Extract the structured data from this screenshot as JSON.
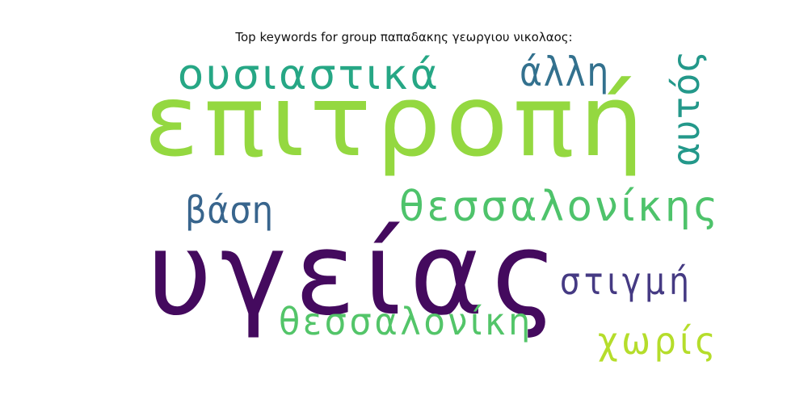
{
  "chart_data": {
    "type": "wordcloud",
    "title": "Top keywords for group παπαδακης γεωργιου νικολαος:",
    "words": [
      {
        "text": "υγείας",
        "color": "#440a5e"
      },
      {
        "text": "επιτροπή",
        "color": "#94d840"
      },
      {
        "text": "ουσιαστικά",
        "color": "#26a785"
      },
      {
        "text": "άλλη",
        "color": "#33718e"
      },
      {
        "text": "αυτός",
        "color": "#23988a"
      },
      {
        "text": "θεσσαλονίκης",
        "color": "#4ec36b"
      },
      {
        "text": "βάση",
        "color": "#38658d"
      },
      {
        "text": "στιγμή",
        "color": "#453a83"
      },
      {
        "text": "θεσσαλονίκη",
        "color": "#53c569"
      },
      {
        "text": "χωρίς",
        "color": "#b5dd2b"
      }
    ]
  }
}
